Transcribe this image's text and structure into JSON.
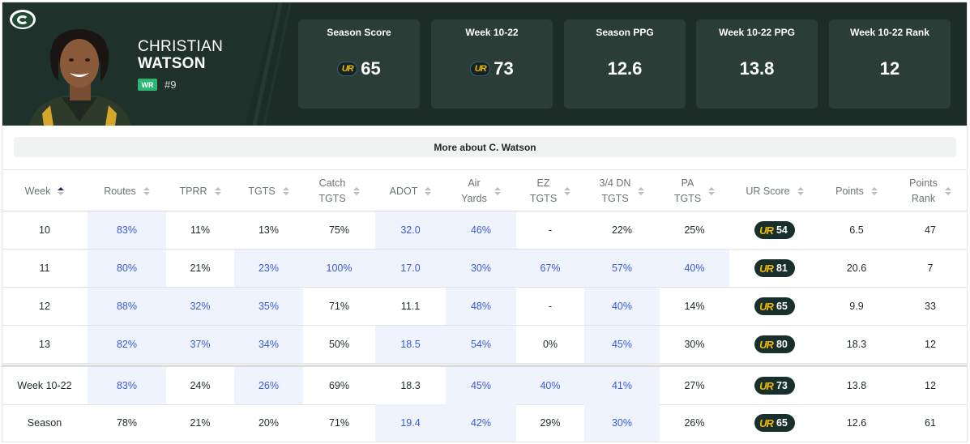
{
  "player": {
    "first_name": "CHRISTIAN",
    "last_name": "WATSON",
    "position": "WR",
    "jersey": "#9",
    "team_logo_icon": "packers-g-logo-icon"
  },
  "stat_cards": [
    {
      "label": "Season Score",
      "value": "65",
      "ur_icon": true
    },
    {
      "label": "Week 10-22",
      "value": "73",
      "ur_icon": true
    },
    {
      "label": "Season PPG",
      "value": "12.6",
      "ur_icon": false
    },
    {
      "label": "Week 10-22 PPG",
      "value": "13.8",
      "ur_icon": false
    },
    {
      "label": "Week 10-22 Rank",
      "value": "12",
      "ur_icon": false
    }
  ],
  "ur_mark": "UR",
  "more_button": "More about C. Watson",
  "table": {
    "columns": [
      [
        "Week"
      ],
      [
        "Routes"
      ],
      [
        "TPRR"
      ],
      [
        "TGTS"
      ],
      [
        "Catch",
        "TGTS"
      ],
      [
        "ADOT"
      ],
      [
        "Air",
        "Yards"
      ],
      [
        "EZ",
        "TGTS"
      ],
      [
        "3/4 DN",
        "TGTS"
      ],
      [
        "PA",
        "TGTS"
      ],
      [
        "UR Score"
      ],
      [
        "Points"
      ],
      [
        "Points",
        "Rank"
      ]
    ],
    "rows": [
      {
        "cells": [
          "10",
          "83%",
          "11%",
          "13%",
          "75%",
          "32.0",
          "46%",
          "-",
          "22%",
          "25%",
          "54",
          "6.5",
          "47"
        ],
        "hl": [
          false,
          true,
          false,
          false,
          false,
          true,
          true,
          false,
          false,
          false,
          false,
          false,
          false
        ]
      },
      {
        "cells": [
          "11",
          "80%",
          "21%",
          "23%",
          "100%",
          "17.0",
          "30%",
          "67%",
          "57%",
          "40%",
          "81",
          "20.6",
          "7"
        ],
        "hl": [
          false,
          true,
          false,
          true,
          true,
          true,
          true,
          true,
          true,
          true,
          false,
          false,
          false
        ]
      },
      {
        "cells": [
          "12",
          "88%",
          "32%",
          "35%",
          "71%",
          "11.1",
          "48%",
          "-",
          "40%",
          "14%",
          "65",
          "9.9",
          "33"
        ],
        "hl": [
          false,
          true,
          true,
          true,
          false,
          false,
          true,
          false,
          true,
          false,
          false,
          false,
          false
        ]
      },
      {
        "cells": [
          "13",
          "82%",
          "37%",
          "34%",
          "50%",
          "18.5",
          "54%",
          "0%",
          "45%",
          "30%",
          "80",
          "18.3",
          "12"
        ],
        "hl": [
          false,
          true,
          true,
          true,
          false,
          true,
          true,
          false,
          true,
          false,
          false,
          false,
          false
        ]
      },
      {
        "cells": [
          "Week 10-22",
          "83%",
          "24%",
          "26%",
          "69%",
          "18.3",
          "45%",
          "40%",
          "41%",
          "27%",
          "73",
          "13.8",
          "12"
        ],
        "hl": [
          false,
          true,
          false,
          true,
          false,
          false,
          true,
          true,
          true,
          false,
          false,
          false,
          false
        ]
      },
      {
        "cells": [
          "Season",
          "78%",
          "21%",
          "20%",
          "71%",
          "19.4",
          "42%",
          "29%",
          "30%",
          "26%",
          "65",
          "12.6",
          "61"
        ],
        "hl": [
          false,
          false,
          false,
          false,
          false,
          true,
          true,
          false,
          true,
          false,
          false,
          false,
          false
        ]
      }
    ]
  },
  "colors": {
    "header_bg": "#1c2c27",
    "highlight_bg": "#eef3fd",
    "highlight_text": "#3b5bd6",
    "ur_gold": "#f2b705",
    "position_badge": "#2bb673"
  }
}
